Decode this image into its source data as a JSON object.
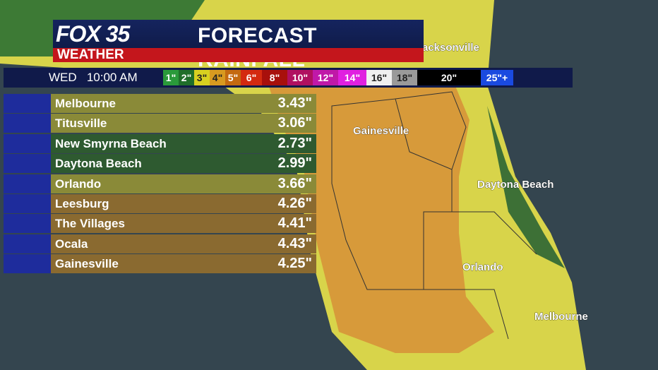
{
  "logo": {
    "brand": "FOX 35",
    "sub": "WEATHER"
  },
  "title": "FORECAST RAINFALL",
  "time": "WED   10:00 AM",
  "legend": [
    {
      "label": "1\"",
      "color": "#2a9a3a"
    },
    {
      "label": "2\"",
      "color": "#1f6e2a"
    },
    {
      "label": "3\"",
      "color": "#d8d020"
    },
    {
      "label": "4\"",
      "color": "#d89a20"
    },
    {
      "label": "5\"",
      "color": "#c46a10"
    },
    {
      "label": "6\"",
      "color": "#d42a10"
    },
    {
      "label": "8\"",
      "color": "#a8100c"
    },
    {
      "label": "10\"",
      "color": "#b01060"
    },
    {
      "label": "12\"",
      "color": "#c018a8"
    },
    {
      "label": "14\"",
      "color": "#e020e0"
    },
    {
      "label": "16\"",
      "color": "#f0f0f0"
    },
    {
      "label": "18\"",
      "color": "#9a9a9a"
    },
    {
      "label": "20\"",
      "color": "#000000"
    },
    {
      "label": "25\"+",
      "color": "#1a4ae0"
    }
  ],
  "table": {
    "rows": [
      {
        "city": "Melbourne",
        "value": "3.43\"",
        "color": "#8a8a38"
      },
      {
        "city": "Titusville",
        "value": "3.06\"",
        "color": "#8a8a38"
      },
      {
        "city": "New Smyrna Beach",
        "value": "2.73\"",
        "color": "#2e5a30"
      },
      {
        "city": "Daytona Beach",
        "value": "2.99\"",
        "color": "#2e5a30"
      },
      {
        "city": "Orlando",
        "value": "3.66\"",
        "color": "#8a8a38"
      },
      {
        "city": "Leesburg",
        "value": "4.26\"",
        "color": "#8a6a30"
      },
      {
        "city": "The Villages",
        "value": "4.41\"",
        "color": "#8a6a30"
      },
      {
        "city": "Ocala",
        "value": "4.43\"",
        "color": "#8a6a30"
      },
      {
        "city": "Gainesville",
        "value": "4.25\"",
        "color": "#8a6a30"
      }
    ]
  },
  "map_labels": [
    "acksonville",
    "Gainesville",
    "Daytona Beach",
    "Orlando",
    "Melbourne"
  ]
}
